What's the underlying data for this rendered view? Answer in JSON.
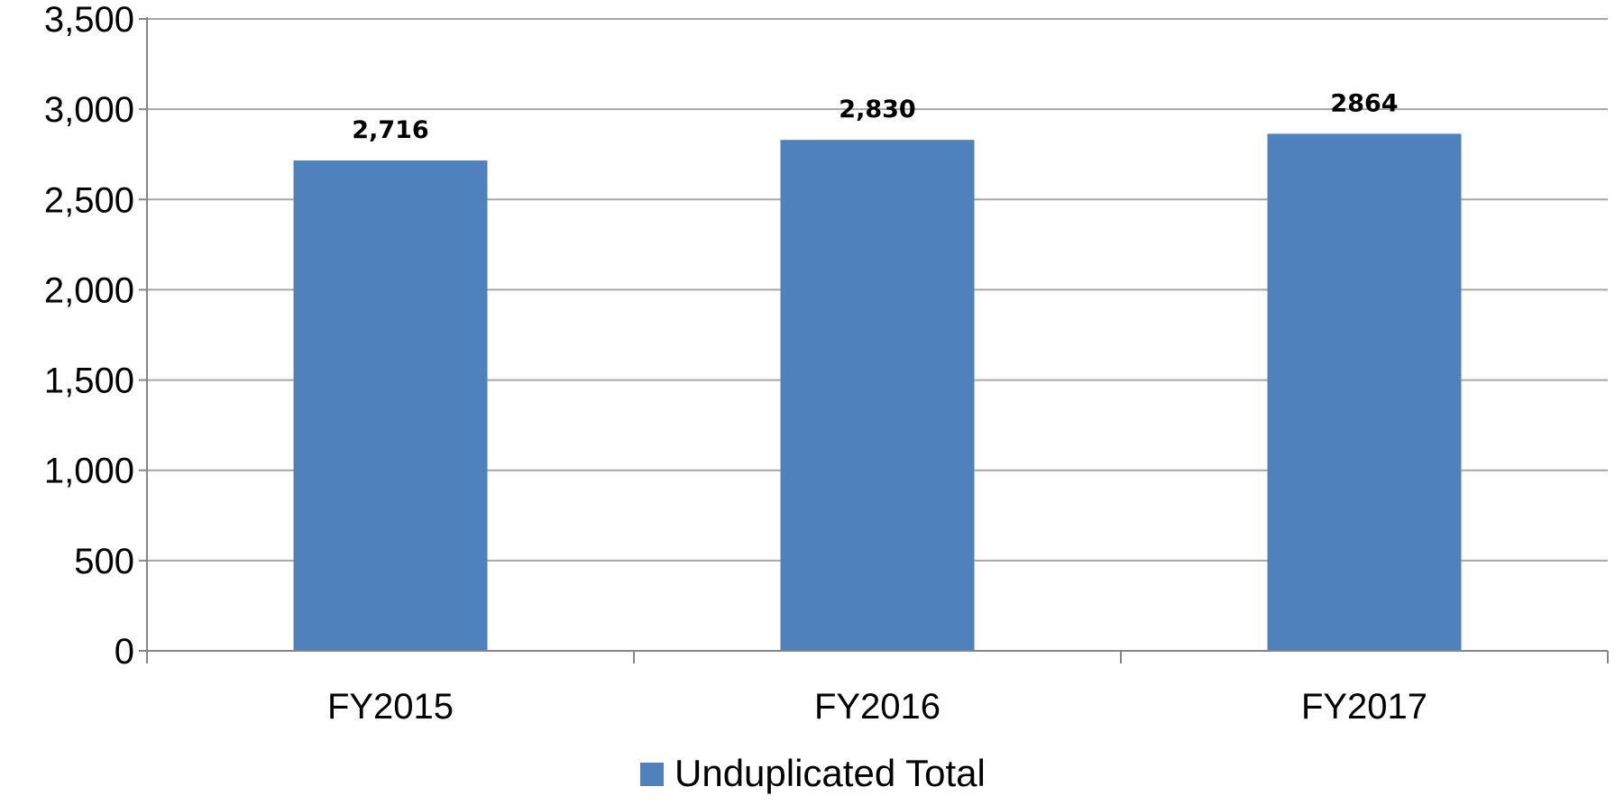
{
  "chart_data": {
    "type": "bar",
    "categories": [
      "FY2015",
      "FY2016",
      "FY2017"
    ],
    "series": [
      {
        "name": "Unduplicated Total",
        "values": [
          2716,
          2830,
          2864
        ],
        "labels": [
          "2,716",
          "2,830",
          "2864"
        ],
        "color": "#4F81BD"
      }
    ],
    "yticks": [
      "0",
      "500",
      "1,000",
      "1,500",
      "2,000",
      "2,500",
      "3,000",
      "3,500"
    ],
    "ylim": [
      0,
      3500
    ],
    "ystep": 500,
    "grid": true,
    "gridColor": "#A6A6A6",
    "axisColor": "#868686",
    "legend_position": "bottom"
  }
}
